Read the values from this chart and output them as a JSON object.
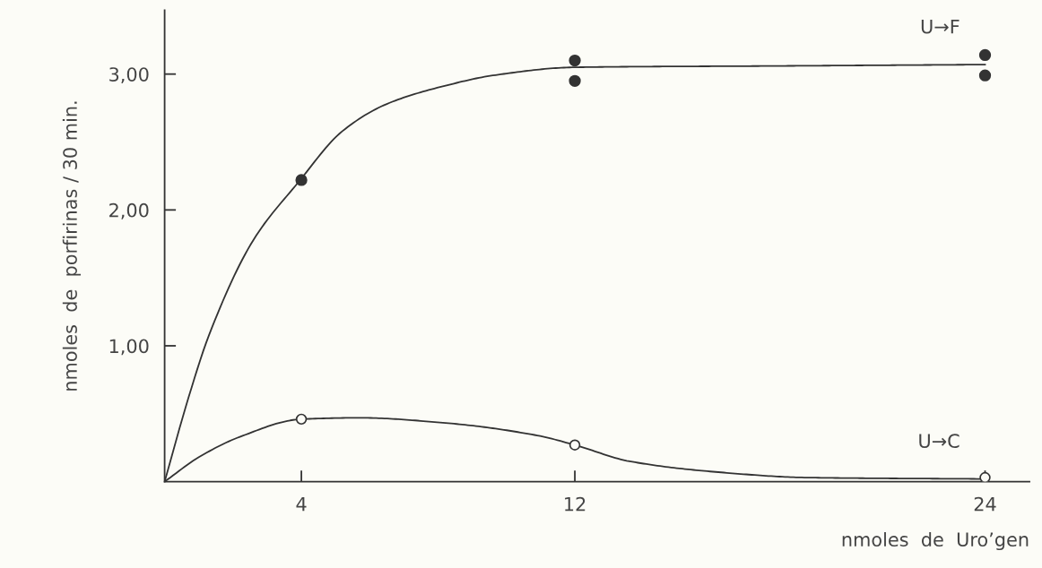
{
  "chart_data": {
    "type": "scatter",
    "xlabel": "nmoles  de  Uro’gen",
    "ylabel": "nmoles  de  porfirinas / 30 min.",
    "xlim": [
      0,
      25.3
    ],
    "xticks": [
      4,
      12,
      24
    ],
    "ylim": [
      0,
      3.47
    ],
    "yticks": [
      {
        "value": 1,
        "label": "1,00"
      },
      {
        "value": 2,
        "label": "2,00"
      },
      {
        "value": 3,
        "label": "3,00"
      }
    ],
    "grid": false,
    "legend": false,
    "series": [
      {
        "type": "line",
        "name": "U→F",
        "color": "#333333",
        "marker": "none",
        "line_style": "solid",
        "x": [
          0,
          0.7,
          1.3,
          2.6,
          3.9,
          5.2,
          6.5,
          8.3,
          9.6,
          12,
          18,
          24
        ],
        "values": [
          0,
          0.62,
          1.08,
          1.78,
          2.2,
          2.58,
          2.78,
          2.92,
          2.99,
          3.05,
          3.06,
          3.07
        ]
      },
      {
        "type": "line",
        "name": "U→C",
        "color": "#333333",
        "marker": "none",
        "line_style": "solid",
        "x": [
          0,
          1,
          2.2,
          4,
          5.7,
          8.3,
          10.9,
          12,
          13.6,
          16.2,
          18.8,
          24
        ],
        "values": [
          0,
          0.18,
          0.33,
          0.46,
          0.47,
          0.43,
          0.34,
          0.27,
          0.15,
          0.07,
          0.03,
          0.02
        ]
      },
      {
        "color": "#333333",
        "marker": "circle",
        "x": [
          4,
          12,
          12,
          24,
          24
        ],
        "values": [
          2.22,
          3.1,
          2.95,
          3.14,
          2.99
        ]
      },
      {
        "color": "#333333",
        "marker": "circle",
        "x": [
          4,
          12,
          24
        ],
        "values": [
          0.46,
          0.27,
          0.03
        ]
      }
    ]
  }
}
